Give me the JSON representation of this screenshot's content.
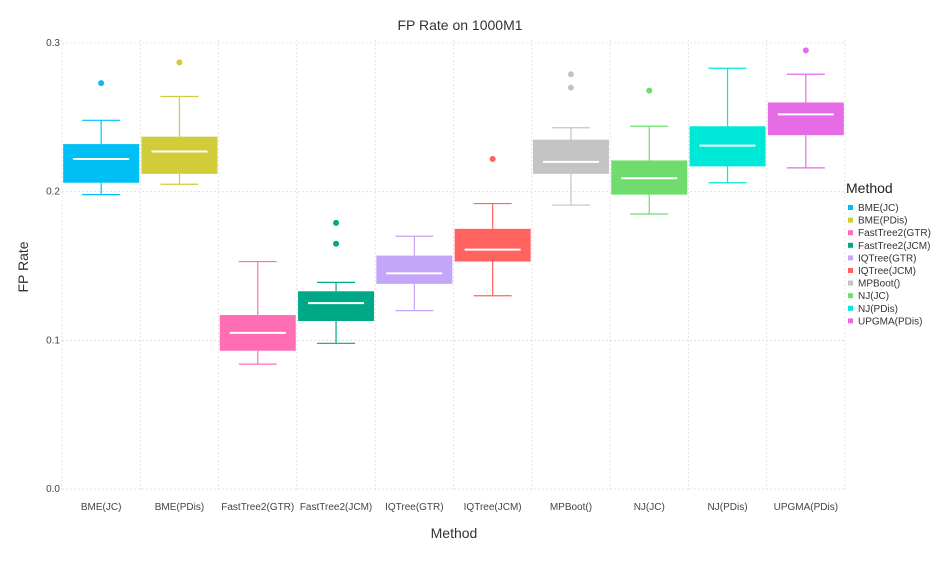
{
  "chart_data": {
    "type": "box",
    "title": "FP Rate on 1000M1",
    "xlabel": "Method",
    "ylabel": "FP Rate",
    "ylim": [
      0,
      0.3
    ],
    "yticks": [
      "0.0",
      "0.1",
      "0.2",
      "0.3"
    ],
    "grid": true,
    "legend": {
      "title": "Method",
      "placement": "right"
    },
    "categories": [
      "BME(JC)",
      "BME(PDis)",
      "FastTree2(GTR)",
      "FastTree2(JCM)",
      "IQTree(GTR)",
      "IQTree(JCM)",
      "MPBoot()",
      "NJ(JC)",
      "NJ(PDis)",
      "UPGMA(PDis)"
    ],
    "series": [
      {
        "name": "BME(JC)",
        "color": "#00BFF4",
        "whisker_low": 0.198,
        "q1": 0.206,
        "median": 0.222,
        "q3": 0.232,
        "whisker_high": 0.248,
        "outliers": [
          0.273
        ]
      },
      {
        "name": "BME(PDis)",
        "color": "#D2CB3A",
        "whisker_low": 0.205,
        "q1": 0.212,
        "median": 0.227,
        "q3": 0.237,
        "whisker_high": 0.264,
        "outliers": [
          0.287
        ]
      },
      {
        "name": "FastTree2(GTR)",
        "color": "#FF6EB4",
        "whisker_low": 0.084,
        "q1": 0.093,
        "median": 0.105,
        "q3": 0.117,
        "whisker_high": 0.153,
        "outliers": []
      },
      {
        "name": "FastTree2(JCM)",
        "color": "#00A888",
        "whisker_low": 0.098,
        "q1": 0.113,
        "median": 0.125,
        "q3": 0.133,
        "whisker_high": 0.139,
        "outliers": [
          0.165,
          0.179
        ]
      },
      {
        "name": "IQTree(GTR)",
        "color": "#C4A6F8",
        "whisker_low": 0.12,
        "q1": 0.138,
        "median": 0.145,
        "q3": 0.157,
        "whisker_high": 0.17,
        "outliers": []
      },
      {
        "name": "IQTree(JCM)",
        "color": "#FF6360",
        "whisker_low": 0.13,
        "q1": 0.153,
        "median": 0.161,
        "q3": 0.175,
        "whisker_high": 0.192,
        "outliers": [
          0.222
        ]
      },
      {
        "name": "MPBoot()",
        "color": "#C4C4C4",
        "whisker_low": 0.191,
        "q1": 0.212,
        "median": 0.22,
        "q3": 0.235,
        "whisker_high": 0.243,
        "outliers": [
          0.27,
          0.279
        ]
      },
      {
        "name": "NJ(JC)",
        "color": "#6EDD6E",
        "whisker_low": 0.185,
        "q1": 0.198,
        "median": 0.209,
        "q3": 0.221,
        "whisker_high": 0.244,
        "outliers": [
          0.268
        ]
      },
      {
        "name": "NJ(PDis)",
        "color": "#00E8D8",
        "whisker_low": 0.206,
        "q1": 0.217,
        "median": 0.231,
        "q3": 0.244,
        "whisker_high": 0.283,
        "outliers": []
      },
      {
        "name": "UPGMA(PDis)",
        "color": "#E66CE6",
        "whisker_low": 0.216,
        "q1": 0.238,
        "median": 0.252,
        "q3": 0.26,
        "whisker_high": 0.279,
        "outliers": [
          0.295
        ]
      }
    ]
  }
}
